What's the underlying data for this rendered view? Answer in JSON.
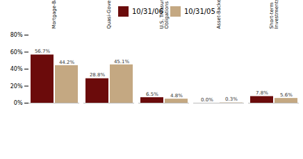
{
  "chart_data": {
    "type": "bar",
    "categories": [
      "Mortgage-Backed",
      "Quasi-Governments*",
      "U.S. Treasury\nObligations",
      "Asset-Backed",
      "Short-term\nInvestments"
    ],
    "series": [
      {
        "name": "10/31/06",
        "color": "#6B0B0B",
        "values": [
          56.7,
          28.8,
          6.5,
          0.0,
          7.8
        ],
        "value_labels": [
          "56.7%",
          "28.8%",
          "6.5%",
          "0.0%",
          "7.8%"
        ]
      },
      {
        "name": "10/31/05",
        "color": "#C4A882",
        "values": [
          44.2,
          45.1,
          4.8,
          0.3,
          5.6
        ],
        "value_labels": [
          "44.2%",
          "45.1%",
          "4.8%",
          "0.3%",
          "5.6%"
        ]
      }
    ],
    "ylim": [
      0,
      80
    ],
    "yticks": [
      {
        "value": 0,
        "label": "0%"
      },
      {
        "value": 20,
        "label": "20%"
      },
      {
        "value": 40,
        "label": "40%"
      },
      {
        "value": 60,
        "label": "60%"
      },
      {
        "value": 80,
        "label": "80%"
      }
    ],
    "grid": false,
    "legend": "top",
    "data_labels": true
  }
}
